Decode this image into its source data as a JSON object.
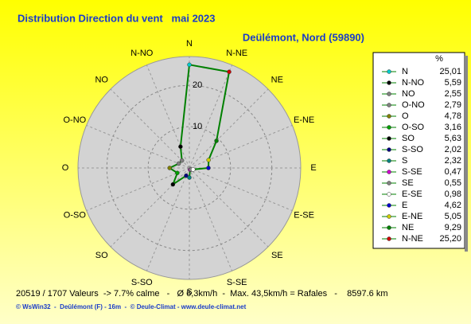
{
  "chart_data": {
    "type": "radar",
    "title": "Distribution Direction du vent   mai 2023",
    "subtitle": "Deülémont, Nord (59890)",
    "legend_header": "%",
    "categories": [
      "N",
      "N-NO",
      "NO",
      "O-NO",
      "O",
      "O-SO",
      "SO",
      "S-SO",
      "S",
      "S-SE",
      "SE",
      "E-SE",
      "E",
      "E-NE",
      "NE",
      "N-NE"
    ],
    "values": [
      25.01,
      5.59,
      2.55,
      2.79,
      4.78,
      3.16,
      5.63,
      2.02,
      2.32,
      0.47,
      0.55,
      0.98,
      4.62,
      5.05,
      9.29,
      25.2
    ],
    "value_labels": [
      "25,01",
      "5,59",
      "2,55",
      "2,79",
      "4,78",
      "3,16",
      "5,63",
      "2,02",
      "2,32",
      "0,47",
      "0,55",
      "0,98",
      "4,62",
      "5,05",
      "9,29",
      "25,20"
    ],
    "marker_colors": [
      "#00cccc",
      "#000000",
      "#808080",
      "#808080",
      "#808000",
      "#00a000",
      "#000000",
      "#000080",
      "#008080",
      "#cc00cc",
      "#808080",
      "#ffffff",
      "#0000cc",
      "#cccc00",
      "#008000",
      "#cc0000"
    ],
    "color": "#008000",
    "rlim": [
      0,
      27
    ],
    "rticks": [
      10,
      20
    ],
    "annotations": [
      "20519 / 1707 Valeurs  -> 7.7% calme   -   Ø 6,3km/h  -  Max. 43,5km/h = Rafales   -    8597.6 km",
      "© WsWin32  -  Deûlémont (F) - 16m  -  © Deule-Climat - www.deule-climat.net"
    ]
  }
}
